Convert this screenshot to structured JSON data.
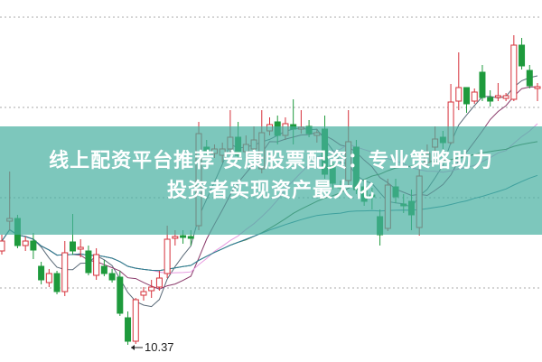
{
  "banner": {
    "title_line1": "线上配资平台推荐 安康股票配资：专业策略助力",
    "title_line2": "投资者实现资产最大化"
  },
  "chart_data": {
    "type": "candlestick",
    "grid": true,
    "gridlines": [
      14,
      13,
      12,
      11
    ],
    "ylim": [
      10.2,
      14.19
    ],
    "low_annotation": "10.37",
    "colors": {
      "up": "#d6303a",
      "down": "#1e9a3c",
      "banner": "#7ec7bd"
    },
    "moving_averages": [
      {
        "period": 5,
        "color": "#5a6a78"
      },
      {
        "period": 10,
        "color": "#8a3a6a"
      },
      {
        "period": 20,
        "color": "#e79ae0"
      },
      {
        "period": 30,
        "color": "#3f6e3a"
      },
      {
        "period": 60,
        "color": "#2f7f99"
      }
    ],
    "candles": [
      [
        11.41,
        11.59,
        11.37,
        11.52
      ],
      [
        11.74,
        12.29,
        11.64,
        11.77
      ],
      [
        11.77,
        11.81,
        11.44,
        11.47
      ],
      [
        11.47,
        11.57,
        11.41,
        11.52
      ],
      [
        11.52,
        11.61,
        11.32,
        11.42
      ],
      [
        11.24,
        11.29,
        11.04,
        11.09
      ],
      [
        11.06,
        11.21,
        11.01,
        11.16
      ],
      [
        11.16,
        11.19,
        10.93,
        10.96
      ],
      [
        10.96,
        11.52,
        10.91,
        11.39
      ],
      [
        11.51,
        11.82,
        11.37,
        11.41
      ],
      [
        11.43,
        11.54,
        11.34,
        11.45
      ],
      [
        11.41,
        11.47,
        11.14,
        11.17
      ],
      [
        11.14,
        11.44,
        11.09,
        11.37
      ],
      [
        11.24,
        11.31,
        11.13,
        11.16
      ],
      [
        11.16,
        11.21,
        11.06,
        11.09
      ],
      [
        11.12,
        11.19,
        10.69,
        10.72
      ],
      [
        10.67,
        10.74,
        10.37,
        10.41
      ],
      [
        10.41,
        10.89,
        10.38,
        10.87
      ],
      [
        10.92,
        11.01,
        10.86,
        10.96
      ],
      [
        10.97,
        11.09,
        10.89,
        11.01
      ],
      [
        11.01,
        11.19,
        10.97,
        11.11
      ],
      [
        11.16,
        11.69,
        11.11,
        11.54
      ],
      [
        11.55,
        11.64,
        11.47,
        11.57
      ],
      [
        11.58,
        11.64,
        11.49,
        11.56
      ],
      [
        11.57,
        11.64,
        11.47,
        11.55
      ],
      [
        11.69,
        12.84,
        11.64,
        12.71
      ],
      [
        12.56,
        12.64,
        12.47,
        12.52
      ],
      [
        12.49,
        12.59,
        12.44,
        12.54
      ],
      [
        12.47,
        12.61,
        12.39,
        12.54
      ],
      [
        12.54,
        12.97,
        12.49,
        12.67
      ],
      [
        12.67,
        12.84,
        12.41,
        12.47
      ],
      [
        12.51,
        12.69,
        12.44,
        12.59
      ],
      [
        12.54,
        12.79,
        12.49,
        12.64
      ],
      [
        12.32,
        12.97,
        12.27,
        12.72
      ],
      [
        12.74,
        12.89,
        12.69,
        12.81
      ],
      [
        12.84,
        12.91,
        12.59,
        12.69
      ],
      [
        12.69,
        12.89,
        12.64,
        12.82
      ],
      [
        12.81,
        13.09,
        12.59,
        12.76
      ],
      [
        12.76,
        12.97,
        12.71,
        12.78
      ],
      [
        12.79,
        12.86,
        12.67,
        12.71
      ],
      [
        12.69,
        12.76,
        12.61,
        12.72
      ],
      [
        12.76,
        12.91,
        12.21,
        12.26
      ],
      [
        12.36,
        12.41,
        12.09,
        12.16
      ],
      [
        12.13,
        12.19,
        12.04,
        12.11
      ],
      [
        12.19,
        12.97,
        12.14,
        12.62
      ],
      [
        12.56,
        12.64,
        12.04,
        12.09
      ],
      [
        12.12,
        12.19,
        11.91,
        11.96
      ],
      [
        12.03,
        12.11,
        11.87,
        12.01
      ],
      [
        11.79,
        11.87,
        11.47,
        11.59
      ],
      [
        11.66,
        12.21,
        11.63,
        12.14
      ],
      [
        12.12,
        12.21,
        11.94,
        12.01
      ],
      [
        11.93,
        12.04,
        11.83,
        11.91
      ],
      [
        11.96,
        12.09,
        11.64,
        11.81
      ],
      [
        11.67,
        12.34,
        11.58,
        12.24
      ],
      [
        12.39,
        12.59,
        12.34,
        12.49
      ],
      [
        12.56,
        12.79,
        12.51,
        12.65
      ],
      [
        12.67,
        12.74,
        12.54,
        12.61
      ],
      [
        12.61,
        13.26,
        12.59,
        13.06
      ],
      [
        13.07,
        13.61,
        12.97,
        13.22
      ],
      [
        13.22,
        13.22,
        12.94,
        13.04
      ],
      [
        13.07,
        13.21,
        13.04,
        13.17
      ],
      [
        13.39,
        13.47,
        13.07,
        13.11
      ],
      [
        13.11,
        13.19,
        13.01,
        13.07
      ],
      [
        13.11,
        13.27,
        13.07,
        13.13
      ],
      [
        13.1,
        13.16,
        13.07,
        13.13
      ],
      [
        13.09,
        13.8,
        13.07,
        13.69
      ],
      [
        13.69,
        13.77,
        13.42,
        13.46
      ],
      [
        13.41,
        13.47,
        13.21,
        13.24
      ],
      [
        13.21,
        13.27,
        13.07,
        13.23
      ]
    ]
  }
}
